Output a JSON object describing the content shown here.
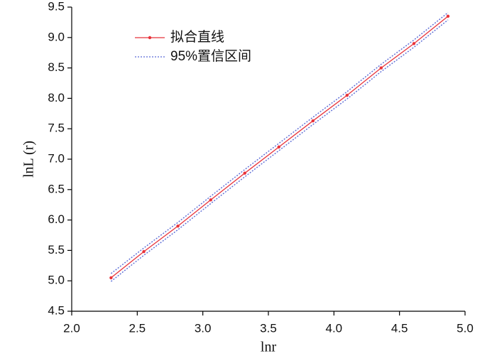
{
  "chart_data": {
    "type": "line",
    "x_label": "lnr",
    "y_label": "lnL (r)",
    "x": [
      2.3,
      2.55,
      2.81,
      3.06,
      3.32,
      3.58,
      3.84,
      4.1,
      4.36,
      4.61,
      4.87
    ],
    "series": [
      {
        "name": "拟合直线",
        "color": "#e8333a",
        "style": "solid",
        "markers": true,
        "values": [
          5.05,
          5.48,
          5.9,
          6.33,
          6.77,
          7.2,
          7.63,
          8.05,
          8.5,
          8.9,
          9.35
        ]
      },
      {
        "name": "95%置信区间",
        "color": "#5a6bd6",
        "style": "dotted",
        "markers": false,
        "values": [
          5.12,
          5.54,
          5.96,
          6.39,
          6.83,
          7.26,
          7.69,
          8.11,
          8.56,
          8.96,
          9.41
        ]
      },
      {
        "name": null,
        "color": "#5a6bd6",
        "style": "dotted",
        "markers": false,
        "values": [
          4.99,
          5.42,
          5.84,
          6.27,
          6.71,
          7.14,
          7.57,
          7.99,
          8.44,
          8.84,
          9.29
        ]
      }
    ],
    "xlim": [
      2.0,
      5.0
    ],
    "xticks": [
      {
        "value": 2,
        "label": "2.0"
      },
      2.5,
      {
        "value": 3,
        "label": "3.0"
      },
      3.5,
      {
        "value": 4,
        "label": "4.0"
      },
      4.5,
      {
        "value": 5,
        "label": "5.0"
      }
    ],
    "ylim": [
      4.5,
      9.5
    ],
    "yticks": [
      4.5,
      {
        "value": 5,
        "label": "5.0"
      },
      5.5,
      {
        "value": 6,
        "label": "6.0"
      },
      6.5,
      {
        "value": 7,
        "label": "7.0"
      },
      7.5,
      {
        "value": 8,
        "label": "8.0"
      },
      8.5,
      {
        "value": 9,
        "label": "9.0"
      },
      9.5
    ],
    "grid": false,
    "legend": "upper-left"
  }
}
